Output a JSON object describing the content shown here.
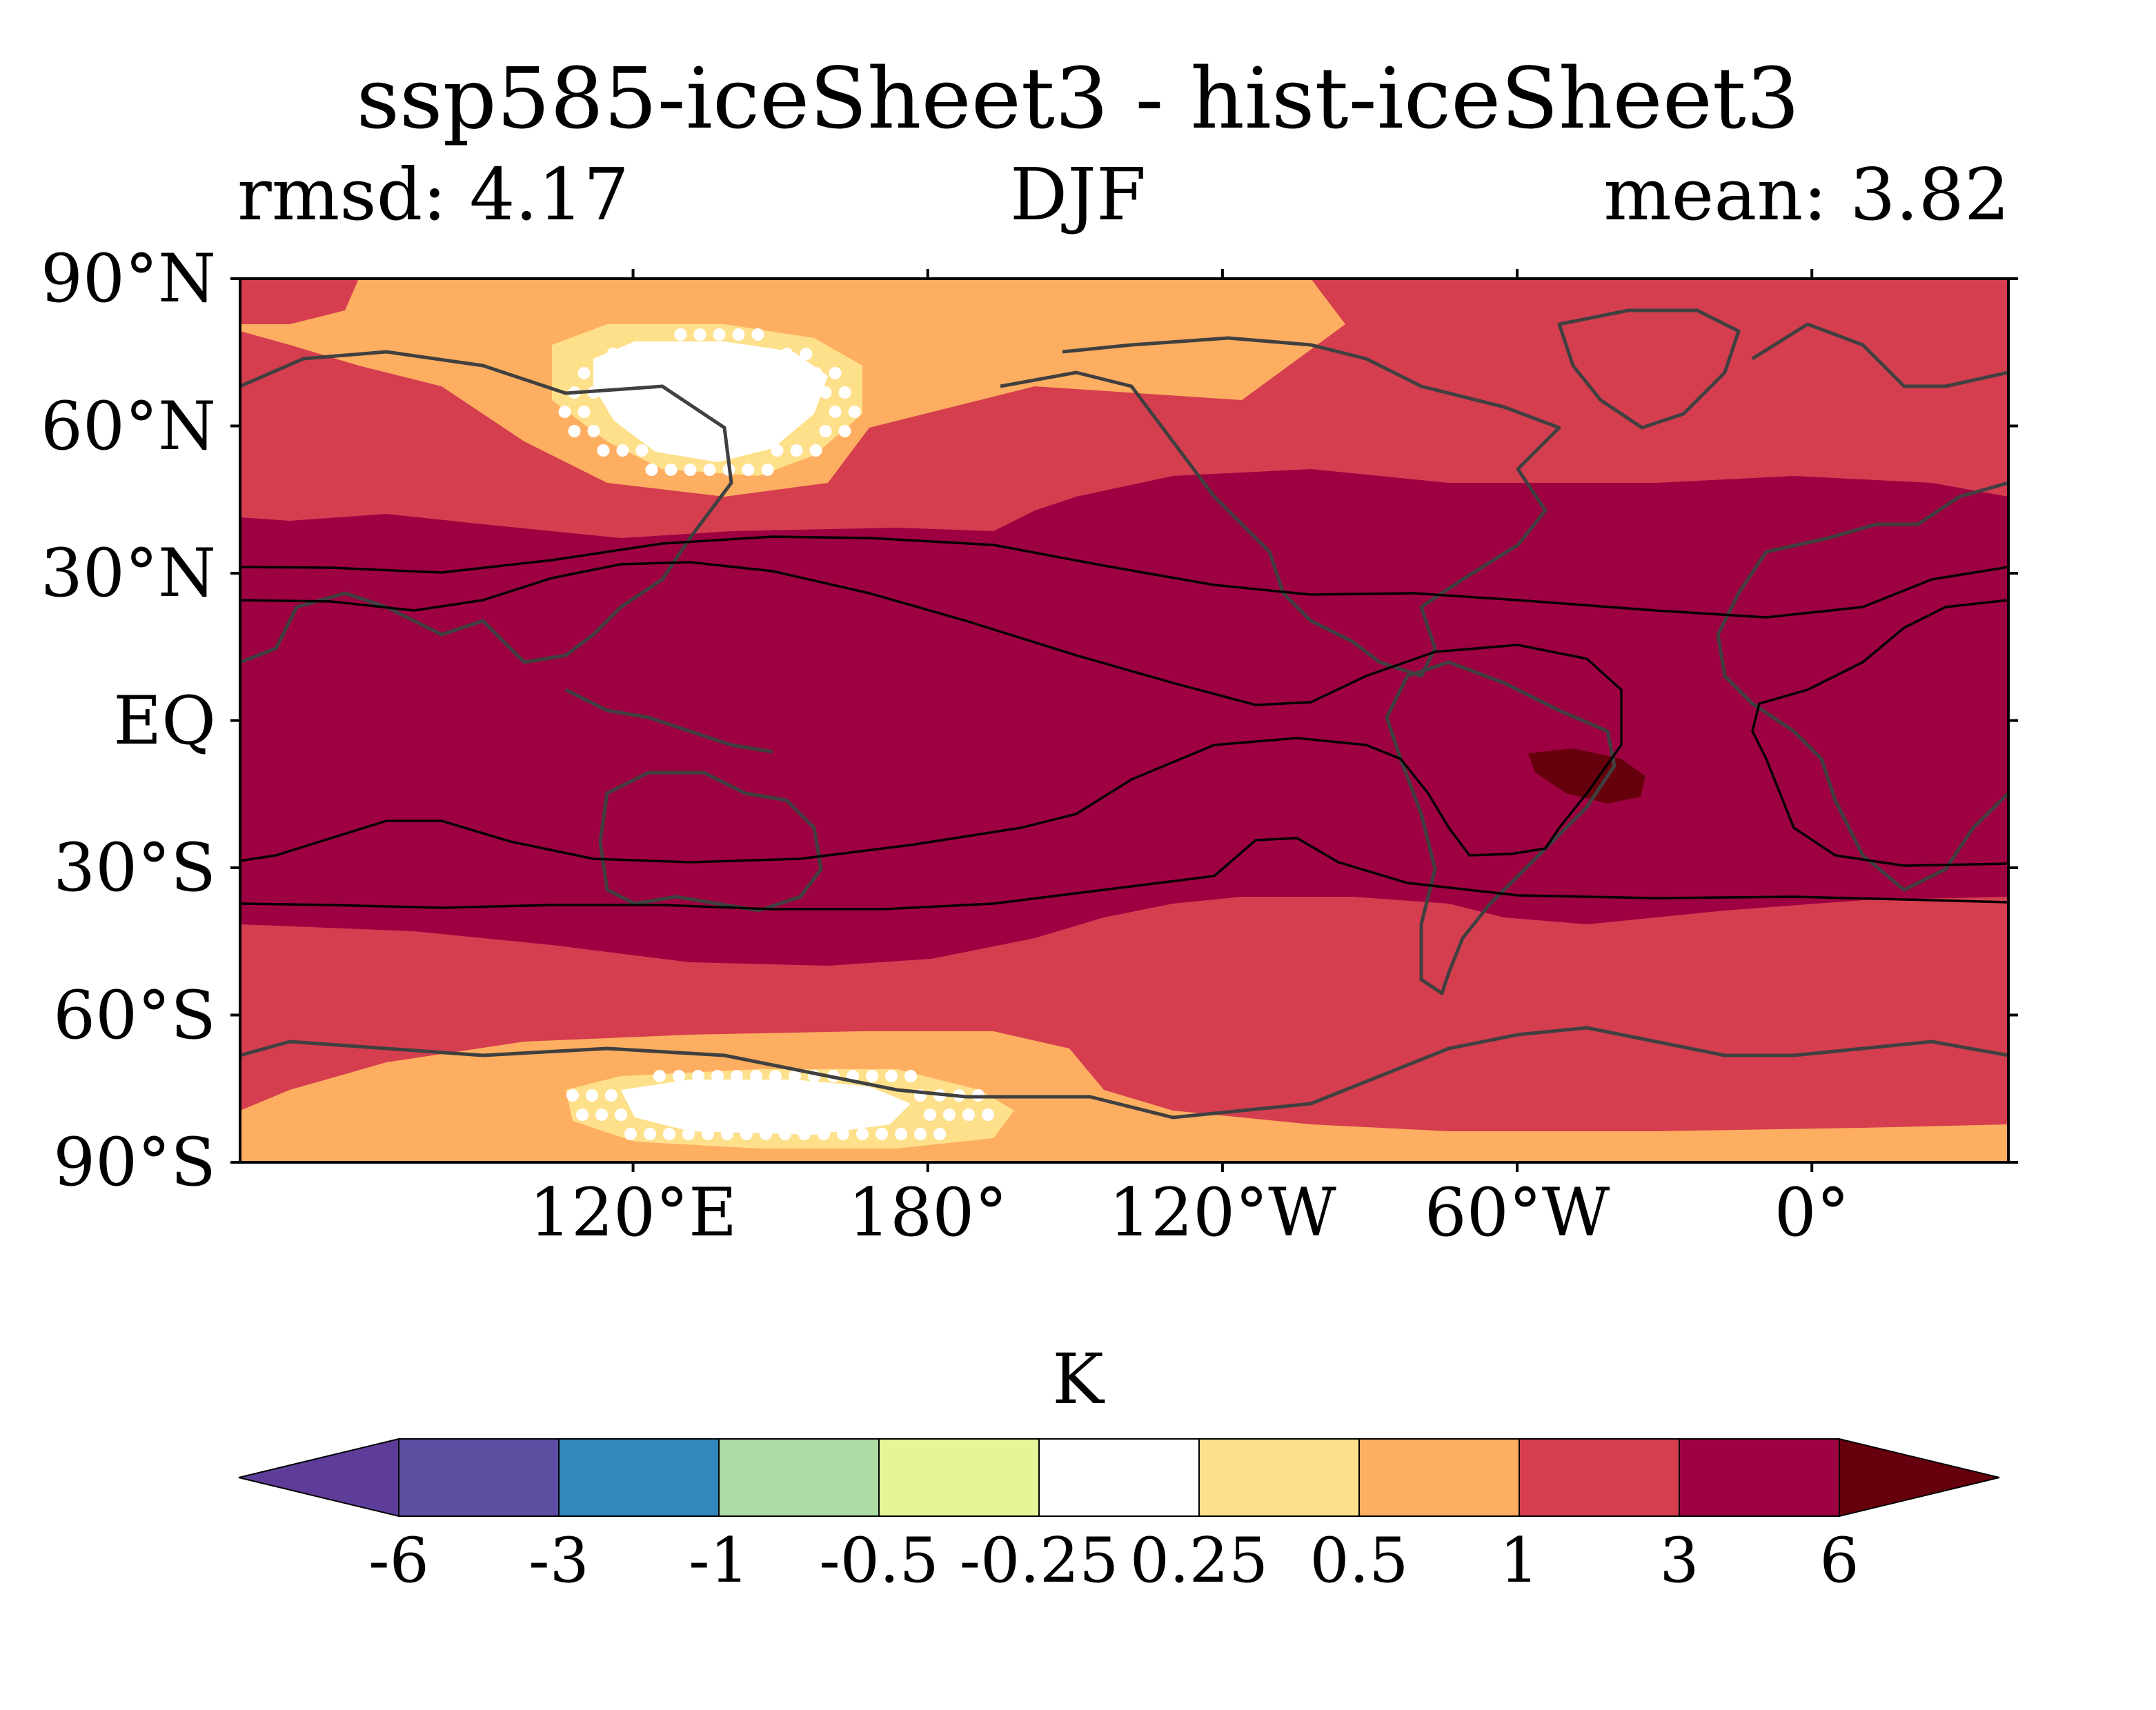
{
  "title": "ssp585-iceSheet3 - hist-iceSheet3",
  "subtitle": {
    "left": "rmsd: 4.17",
    "center": "DJF",
    "right": "mean: 3.82"
  },
  "lat_ticks": [
    {
      "label": "90°N",
      "lat": 90
    },
    {
      "label": "60°N",
      "lat": 60
    },
    {
      "label": "30°N",
      "lat": 30
    },
    {
      "label": "EQ",
      "lat": 0
    },
    {
      "label": "30°S",
      "lat": -30
    },
    {
      "label": "60°S",
      "lat": -60
    },
    {
      "label": "90°S",
      "lat": -90
    }
  ],
  "lon_ticks": [
    {
      "label": "120°E",
      "lon": 120
    },
    {
      "label": "180°",
      "lon": 180
    },
    {
      "label": "120°W",
      "lon": 240
    },
    {
      "label": "60°W",
      "lon": 300
    },
    {
      "label": "0°",
      "lon": 360
    }
  ],
  "map": {
    "lon_range": [
      40,
      400
    ],
    "lat_range": [
      -90,
      90
    ]
  },
  "colorbar": {
    "unit": "K",
    "levels": [
      "-6",
      "-3",
      "-1",
      "-0.5",
      "-0.25",
      "0.25",
      "0.5",
      "1",
      "3",
      "6"
    ],
    "colors": [
      "#5e3c99",
      "#5e4fa2",
      "#3288bd",
      "#abdda4",
      "#e6f598",
      "#ffffff",
      "#fee08b",
      "#fdae61",
      "#d53e4f",
      "#9e0142",
      "#67000d"
    ],
    "extend": "both"
  },
  "chart_data": {
    "type": "heatmap",
    "title": "ssp585-iceSheet3 - hist-iceSheet3",
    "subtitle": [
      "rmsd: 4.17",
      "DJF",
      "mean: 3.82"
    ],
    "field": "temperature difference",
    "unit": "K",
    "season": "DJF",
    "rmsd": 4.17,
    "mean": 3.82,
    "xlim": [
      40,
      400
    ],
    "ylim": [
      -90,
      90
    ],
    "regions": [
      {
        "category": "1 to 3",
        "color": "#d53e4f",
        "lat_band": "high latitudes of both hemispheres"
      },
      {
        "category": "3 to 6",
        "color": "#9e0142",
        "lat_band": "tropics and subtropics"
      },
      {
        "category": "0.5 to 1",
        "color": "#fdae61",
        "lat_band": "polar edges and around North Pacific patch"
      },
      {
        "category": "0.25 to 0.5",
        "color": "#fee08b",
        "lat_band": "rings around white patches"
      },
      {
        "category": "-0.25 to 0.25",
        "color": "#ffffff",
        "lat_band": "North Pacific patch and Southern Ocean patch"
      },
      {
        "category": "> 6",
        "color": "#67000d",
        "lat_band": "small patch near eastern Brazil"
      }
    ]
  }
}
